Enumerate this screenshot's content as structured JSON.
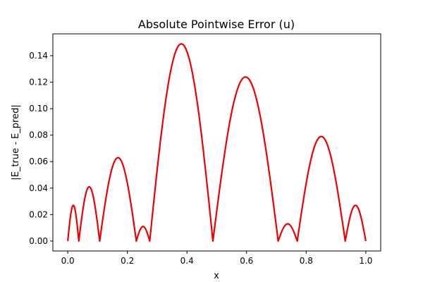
{
  "chart_data": {
    "type": "line",
    "title": "Absolute Pointwise Error (u)",
    "xlabel": "x",
    "ylabel": "|E_true - E_pred|",
    "xlim": [
      -0.05,
      1.05
    ],
    "ylim": [
      -0.0075,
      0.1565
    ],
    "grid": false,
    "x_ticks": [
      0.0,
      0.2,
      0.4,
      0.6,
      0.8,
      1.0
    ],
    "x_tick_labels": [
      "0.0",
      "0.2",
      "0.4",
      "0.6",
      "0.8",
      "1.0"
    ],
    "y_ticks": [
      0.0,
      0.02,
      0.04,
      0.06,
      0.08,
      0.1,
      0.12,
      0.14
    ],
    "y_tick_labels": [
      "0.00",
      "0.02",
      "0.04",
      "0.06",
      "0.08",
      "0.10",
      "0.12",
      "0.14"
    ],
    "series": [
      {
        "color": "#ee0000",
        "zeros": [
          0.0,
          0.037,
          0.107,
          0.23,
          0.275,
          0.487,
          0.706,
          0.77,
          0.931,
          1.0
        ],
        "peaks": [
          {
            "x": 0.018,
            "y": 0.027
          },
          {
            "x": 0.071,
            "y": 0.041
          },
          {
            "x": 0.162,
            "y": 0.063
          },
          {
            "x": 0.253,
            "y": 0.011
          },
          {
            "x": 0.394,
            "y": 0.149
          },
          {
            "x": 0.582,
            "y": 0.124
          },
          {
            "x": 0.737,
            "y": 0.013
          },
          {
            "x": 0.861,
            "y": 0.079
          },
          {
            "x": 0.966,
            "y": 0.027
          }
        ]
      }
    ]
  }
}
